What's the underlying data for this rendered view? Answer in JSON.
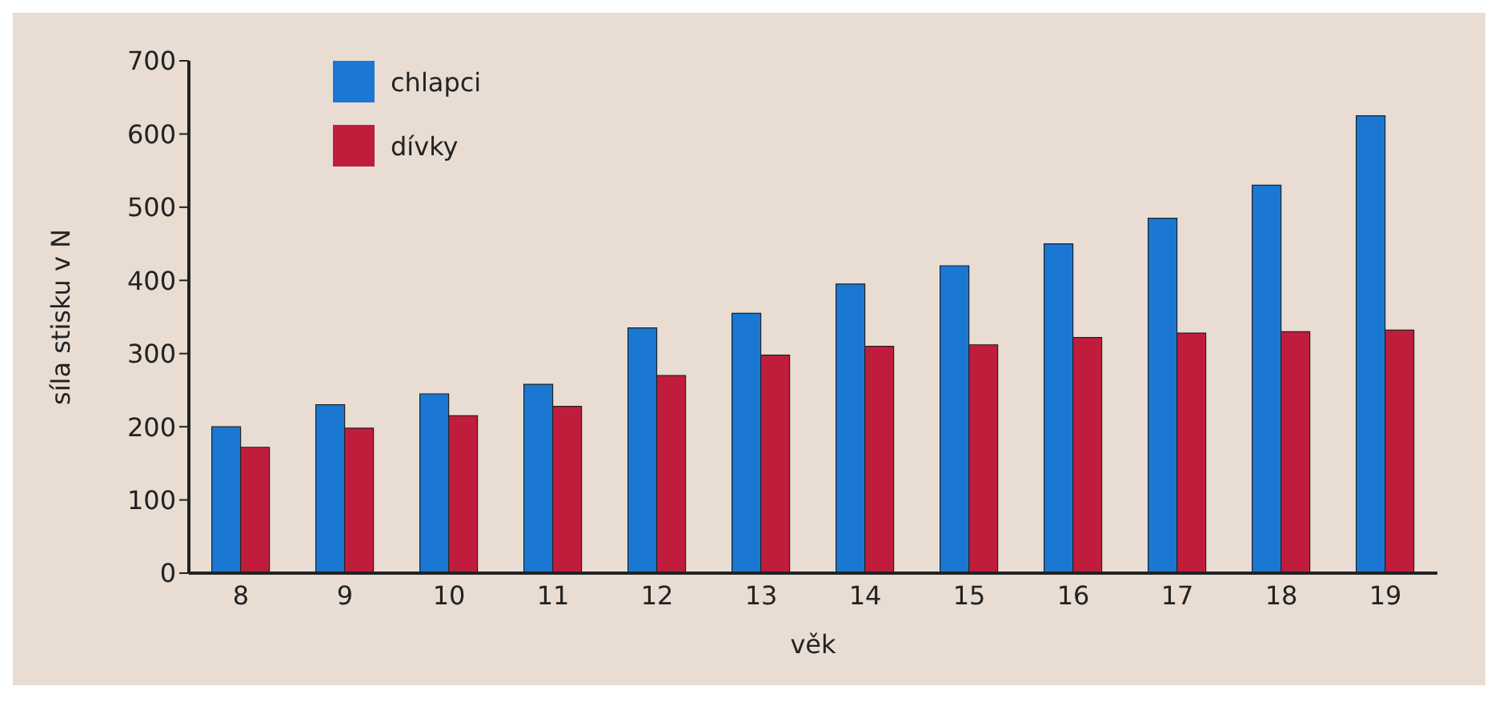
{
  "chart_data": {
    "type": "bar",
    "xlabel": "věk",
    "ylabel": "síla stisku v N",
    "categories": [
      "8",
      "9",
      "10",
      "11",
      "12",
      "13",
      "14",
      "15",
      "16",
      "17",
      "18",
      "19"
    ],
    "series": [
      {
        "name": "chlapci",
        "color": "#1a78d2",
        "values": [
          200,
          230,
          245,
          258,
          335,
          355,
          395,
          420,
          450,
          485,
          530,
          625
        ]
      },
      {
        "name": "dívky",
        "color": "#c01d3c",
        "values": [
          172,
          198,
          215,
          228,
          270,
          298,
          310,
          312,
          322,
          328,
          330,
          332
        ]
      }
    ],
    "ylim": [
      0,
      700
    ],
    "yticks": [
      0,
      100,
      200,
      300,
      400,
      500,
      600,
      700
    ],
    "grid": false,
    "legend": "top left"
  }
}
